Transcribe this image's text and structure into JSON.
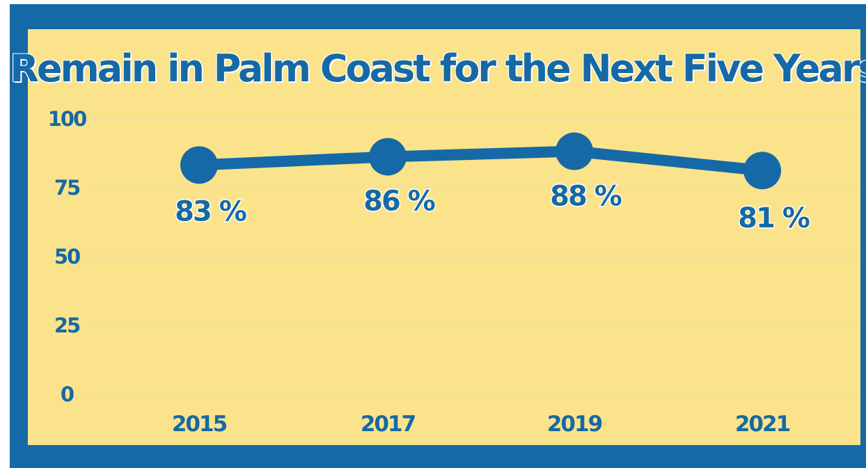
{
  "chart_data": {
    "type": "line",
    "title": "Remain in Palm Coast for the Next Five Years",
    "categories": [
      "2015",
      "2017",
      "2019",
      "2021"
    ],
    "series": [
      {
        "values": [
          83,
          86,
          88,
          81
        ]
      }
    ],
    "data_labels": [
      "83 %",
      "86 %",
      "88 %",
      "81 %"
    ],
    "y_ticks": [
      0,
      25,
      50,
      75,
      100
    ],
    "ylim": [
      0,
      100
    ],
    "grid": true,
    "colors": {
      "background": "#fae38a",
      "frame": "#1569a6",
      "series": "#1569a6",
      "label_outline": "#ffffff"
    }
  }
}
